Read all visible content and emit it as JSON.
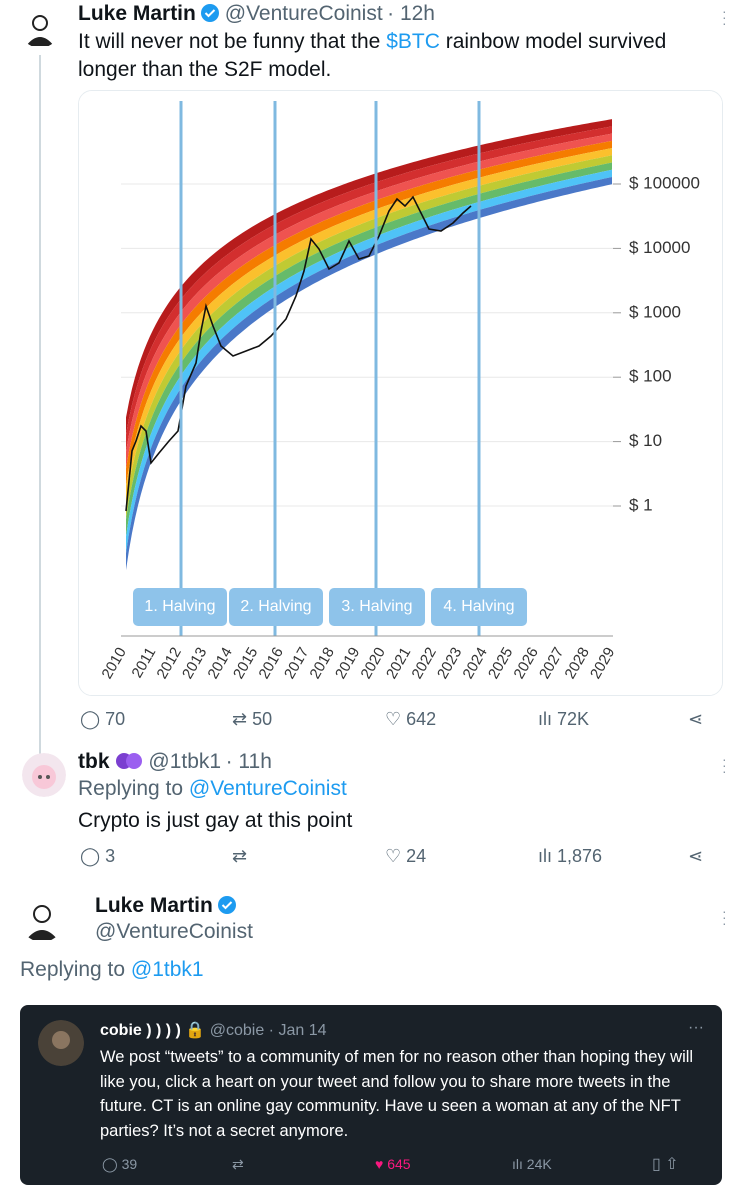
{
  "tweets": [
    {
      "name": "Luke Martin",
      "handle": "@VentureCoinist",
      "time": "· 12h",
      "text": [
        "It will never not be funny that the ",
        "$BTC",
        " rainbow model survived longer than the S2F model."
      ],
      "chart": {
        "y_labels": [
          "$ 100000",
          "$ 10000",
          "$ 1000",
          "$ 100",
          "$ 10",
          "$ 1"
        ],
        "x_labels": [
          "2010",
          "2011",
          "2012",
          "2013",
          "2014",
          "2015",
          "2016",
          "2017",
          "2018",
          "2019",
          "2020",
          "2021",
          "2022",
          "2023",
          "2024",
          "2025",
          "2026",
          "2027",
          "2028",
          "2029"
        ],
        "halvings": [
          "1. Halving",
          "2. Halving",
          "3. Halving",
          "4. Halving"
        ]
      },
      "stats": {
        "replies": "70",
        "retweets": "50",
        "likes": "642",
        "views": "72K"
      }
    },
    {
      "name": "tbk",
      "handle": "@1tbk1",
      "time": "· 11h",
      "replying_label": "Replying to",
      "replying_to": "@VentureCoinist",
      "text": "Crypto is just gay at this point",
      "stats": {
        "replies": "3",
        "likes": "24",
        "views": "1,876"
      }
    },
    {
      "name": "Luke Martin",
      "handle": "@VentureCoinist",
      "replying_label": "Replying to",
      "replying_to": "@1tbk1",
      "quote": {
        "name": "cobie ) ) ) )",
        "handle": "@cobie",
        "time": "· Jan 14",
        "text": "We post “tweets” to a community of men for no reason other than hoping they will like you, click a heart on your tweet and follow you to share more tweets in the future. CT is an online gay community. Have u seen a woman at any of the NFT parties? It’s not a secret anymore.",
        "stats": {
          "replies": "39",
          "likes": "645",
          "views": "24K"
        }
      }
    }
  ]
}
